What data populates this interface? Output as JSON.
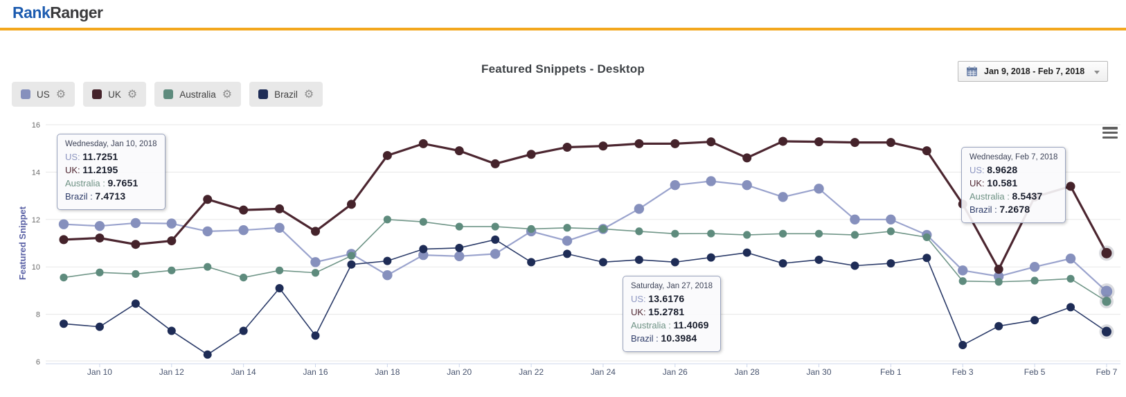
{
  "header": {
    "logo_blue": "Rank",
    "logo_dark": "Ranger",
    "accent_color": "#f3a71d"
  },
  "toolbar": {
    "title": "Featured Snippets - Desktop",
    "date_range": "Jan 9, 2018 - Feb 7, 2018"
  },
  "legend": {
    "items": [
      {
        "label": "US",
        "color": "#8690bd"
      },
      {
        "label": "UK",
        "color": "#45232b"
      },
      {
        "label": "Australia",
        "color": "#5e8b7d"
      },
      {
        "label": "Brazil",
        "color": "#1e2c56"
      }
    ]
  },
  "icons": {
    "calendar": "calendar-icon",
    "caret": "dropdown-caret-icon",
    "gear": "series-settings-gear-icon",
    "hamburger": "chart-menu-hamburger-icon",
    "gear_glyph": "⚙"
  },
  "chart_data": {
    "type": "line",
    "title": "Featured Snippets - Desktop",
    "xlabel": "",
    "ylabel": "Featured Snippet",
    "ylim": [
      6,
      16
    ],
    "yticks": [
      16,
      14,
      12,
      10,
      8,
      6
    ],
    "grid": true,
    "legend_position": "top-left",
    "x_tick_labels": [
      "Jan 10",
      "Jan 12",
      "Jan 14",
      "Jan 16",
      "Jan 18",
      "Jan 20",
      "Jan 22",
      "Jan 24",
      "Jan 26",
      "Jan 28",
      "Jan 30",
      "Feb 1",
      "Feb 3",
      "Feb 5",
      "Feb 7"
    ],
    "categories": [
      "Jan 9",
      "Jan 10",
      "Jan 11",
      "Jan 12",
      "Jan 13",
      "Jan 14",
      "Jan 15",
      "Jan 16",
      "Jan 17",
      "Jan 18",
      "Jan 19",
      "Jan 20",
      "Jan 21",
      "Jan 22",
      "Jan 23",
      "Jan 24",
      "Jan 25",
      "Jan 26",
      "Jan 27",
      "Jan 28",
      "Jan 29",
      "Jan 30",
      "Jan 31",
      "Feb 1",
      "Feb 2",
      "Feb 3",
      "Feb 4",
      "Feb 5",
      "Feb 6",
      "Feb 7"
    ],
    "series": [
      {
        "name": "US",
        "color": "#8690bd",
        "line_color": "#9aa3cd",
        "tooltip_color": "#8d96c1",
        "line_width": 2.2,
        "dot_r": 7.2,
        "values": [
          11.8,
          11.7251,
          11.85,
          11.83,
          11.5,
          11.55,
          11.65,
          10.2,
          10.55,
          9.65,
          10.5,
          10.45,
          10.55,
          11.5,
          11.1,
          11.6,
          12.45,
          13.45,
          13.6176,
          13.45,
          12.95,
          13.3,
          12.0,
          12.0,
          11.35,
          9.85,
          9.6,
          10.0,
          10.35,
          8.9628
        ]
      },
      {
        "name": "Australia",
        "color": "#5e8b7d",
        "line_color": "#6f9587",
        "tooltip_color": "#6d9183",
        "line_width": 1.6,
        "dot_r": 5.6,
        "values": [
          9.55,
          9.7651,
          9.7,
          9.85,
          10.0,
          9.55,
          9.85,
          9.75,
          10.47,
          12.0,
          11.9,
          11.7,
          11.7,
          11.6,
          11.65,
          11.6,
          11.5,
          11.4,
          11.4069,
          11.35,
          11.4,
          11.4,
          11.35,
          11.5,
          11.25,
          9.4,
          9.37,
          9.42,
          9.5,
          8.5437
        ]
      },
      {
        "name": "Brazil",
        "color": "#1e2c56",
        "line_color": "#2a3a68",
        "tooltip_color": "#2e3c69",
        "line_width": 1.6,
        "dot_r": 6.0,
        "values": [
          7.6,
          7.4713,
          8.45,
          7.3,
          6.3,
          7.3,
          9.1,
          7.1,
          10.1,
          10.25,
          10.75,
          10.8,
          11.15,
          10.2,
          10.55,
          10.2,
          10.3,
          10.2,
          10.3984,
          10.6,
          10.15,
          10.3,
          10.05,
          10.15,
          10.38,
          6.7,
          7.5,
          7.75,
          8.3,
          7.2678
        ]
      },
      {
        "name": "UK",
        "color": "#45232b",
        "line_color": "#4c2630",
        "tooltip_color": "#502832",
        "line_width": 3.2,
        "dot_r": 6.5,
        "values": [
          11.15,
          11.2195,
          10.95,
          11.1,
          12.85,
          12.4,
          12.45,
          11.5,
          12.64,
          14.7,
          15.2,
          14.9,
          14.35,
          14.75,
          15.05,
          15.1,
          15.2,
          15.2,
          15.2781,
          14.6,
          15.3,
          15.28,
          15.25,
          15.25,
          14.9,
          12.65,
          9.9,
          12.95,
          13.4,
          10.581
        ]
      }
    ]
  },
  "tooltips": [
    {
      "date": "Wednesday, Jan 10, 2018",
      "rows": [
        {
          "series": "US",
          "label": "US:",
          "value": "11.7251"
        },
        {
          "series": "UK",
          "label": "UK:",
          "value": "11.2195"
        },
        {
          "series": "Australia",
          "label": "Australia :",
          "value": "9.7651"
        },
        {
          "series": "Brazil",
          "label": "Brazil :",
          "value": "7.4713"
        }
      ]
    },
    {
      "date": "Saturday, Jan 27, 2018",
      "rows": [
        {
          "series": "US",
          "label": "US:",
          "value": "13.6176"
        },
        {
          "series": "UK",
          "label": "UK:",
          "value": "15.2781"
        },
        {
          "series": "Australia",
          "label": "Australia :",
          "value": "11.4069"
        },
        {
          "series": "Brazil",
          "label": "Brazil :",
          "value": "10.3984"
        }
      ]
    },
    {
      "date": "Wednesday, Feb 7, 2018",
      "rows": [
        {
          "series": "US",
          "label": "US:",
          "value": "8.9628"
        },
        {
          "series": "UK",
          "label": "UK:",
          "value": "10.581"
        },
        {
          "series": "Australia",
          "label": "Australia :",
          "value": "8.5437"
        },
        {
          "series": "Brazil",
          "label": "Brazil :",
          "value": "7.2678"
        }
      ]
    }
  ]
}
